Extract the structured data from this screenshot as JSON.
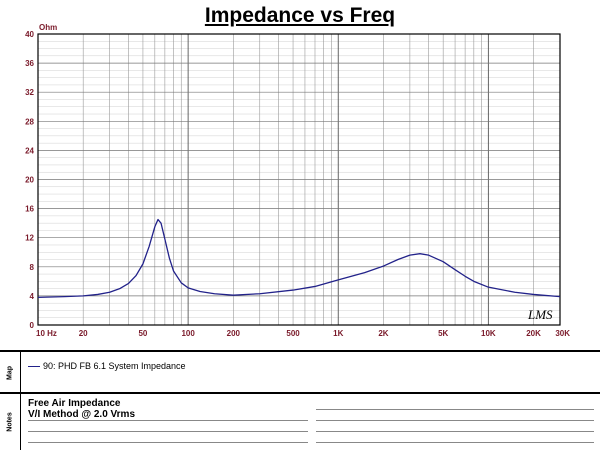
{
  "chart_data": {
    "type": "line",
    "title": "Impedance vs Freq",
    "ylabel": "Ohm",
    "x_scale": "log",
    "xlim": [
      10,
      30000
    ],
    "ylim": [
      0,
      40
    ],
    "grid": true,
    "line_color": "#22228a",
    "y_ticks": [
      "0",
      "4",
      "8",
      "12",
      "16",
      "20",
      "24",
      "28",
      "32",
      "36",
      "40"
    ],
    "x_ticks": [
      {
        "value": 10,
        "label": "10 Hz"
      },
      {
        "value": 20,
        "label": "20"
      },
      {
        "value": 50,
        "label": "50"
      },
      {
        "value": 100,
        "label": "100"
      },
      {
        "value": 200,
        "label": "200"
      },
      {
        "value": 500,
        "label": "500"
      },
      {
        "value": 1000,
        "label": "1K"
      },
      {
        "value": 2000,
        "label": "2K"
      },
      {
        "value": 5000,
        "label": "5K"
      },
      {
        "value": 10000,
        "label": "10K"
      },
      {
        "value": 20000,
        "label": "20K"
      },
      {
        "value": 30000,
        "label": "30K"
      }
    ],
    "series": [
      {
        "name": "90: PHD FB 6.1 System Impedance",
        "points": [
          [
            10,
            3.8
          ],
          [
            15,
            3.9
          ],
          [
            20,
            4.0
          ],
          [
            25,
            4.2
          ],
          [
            30,
            4.5
          ],
          [
            35,
            5.0
          ],
          [
            40,
            5.7
          ],
          [
            45,
            6.8
          ],
          [
            50,
            8.4
          ],
          [
            55,
            10.8
          ],
          [
            60,
            13.5
          ],
          [
            63,
            14.5
          ],
          [
            66,
            14.0
          ],
          [
            70,
            11.8
          ],
          [
            75,
            9.2
          ],
          [
            80,
            7.4
          ],
          [
            90,
            5.8
          ],
          [
            100,
            5.1
          ],
          [
            120,
            4.6
          ],
          [
            150,
            4.3
          ],
          [
            200,
            4.1
          ],
          [
            300,
            4.3
          ],
          [
            500,
            4.8
          ],
          [
            700,
            5.3
          ],
          [
            1000,
            6.2
          ],
          [
            1500,
            7.2
          ],
          [
            2000,
            8.1
          ],
          [
            2500,
            9.0
          ],
          [
            3000,
            9.6
          ],
          [
            3500,
            9.8
          ],
          [
            4000,
            9.6
          ],
          [
            5000,
            8.7
          ],
          [
            6000,
            7.6
          ],
          [
            7000,
            6.7
          ],
          [
            8000,
            6.0
          ],
          [
            10000,
            5.2
          ],
          [
            15000,
            4.5
          ],
          [
            20000,
            4.2
          ],
          [
            30000,
            3.9
          ]
        ]
      }
    ]
  },
  "watermark": "LMS",
  "map_panel": {
    "tab_label": "Map"
  },
  "notes_panel": {
    "tab_label": "Notes",
    "lines": [
      "Free Air Impedance",
      "V/I Method @ 2.0 Vrms"
    ]
  }
}
